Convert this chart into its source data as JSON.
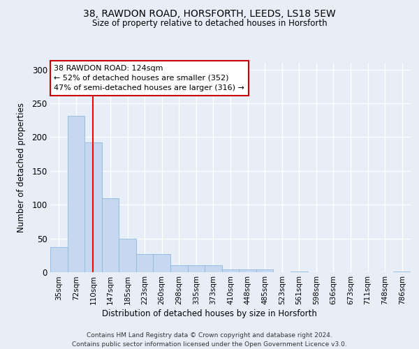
{
  "title1": "38, RAWDON ROAD, HORSFORTH, LEEDS, LS18 5EW",
  "title2": "Size of property relative to detached houses in Horsforth",
  "xlabel": "Distribution of detached houses by size in Horsforth",
  "ylabel": "Number of detached properties",
  "bin_labels": [
    "35sqm",
    "72sqm",
    "110sqm",
    "147sqm",
    "185sqm",
    "223sqm",
    "260sqm",
    "298sqm",
    "335sqm",
    "373sqm",
    "410sqm",
    "448sqm",
    "485sqm",
    "523sqm",
    "561sqm",
    "598sqm",
    "636sqm",
    "673sqm",
    "711sqm",
    "748sqm",
    "786sqm"
  ],
  "bar_heights": [
    37,
    231,
    192,
    110,
    50,
    27,
    27,
    10,
    10,
    10,
    4,
    4,
    4,
    0,
    1,
    0,
    0,
    0,
    0,
    0,
    1
  ],
  "bar_color": "#c5d8f0",
  "bar_edge_color": "#8fb8df",
  "red_line_x": 2.0,
  "annotation_line1": "38 RAWDON ROAD: 124sqm",
  "annotation_line2": "← 52% of detached houses are smaller (352)",
  "annotation_line3": "47% of semi-detached houses are larger (316) →",
  "annotation_box_color": "#ffffff",
  "annotation_box_edge": "#cc0000",
  "background_color": "#e8eef8",
  "grid_color": "#ffffff",
  "ylim": [
    0,
    310
  ],
  "yticks": [
    0,
    50,
    100,
    150,
    200,
    250,
    300
  ],
  "footer_line1": "Contains HM Land Registry data © Crown copyright and database right 2024.",
  "footer_line2": "Contains public sector information licensed under the Open Government Licence v3.0."
}
